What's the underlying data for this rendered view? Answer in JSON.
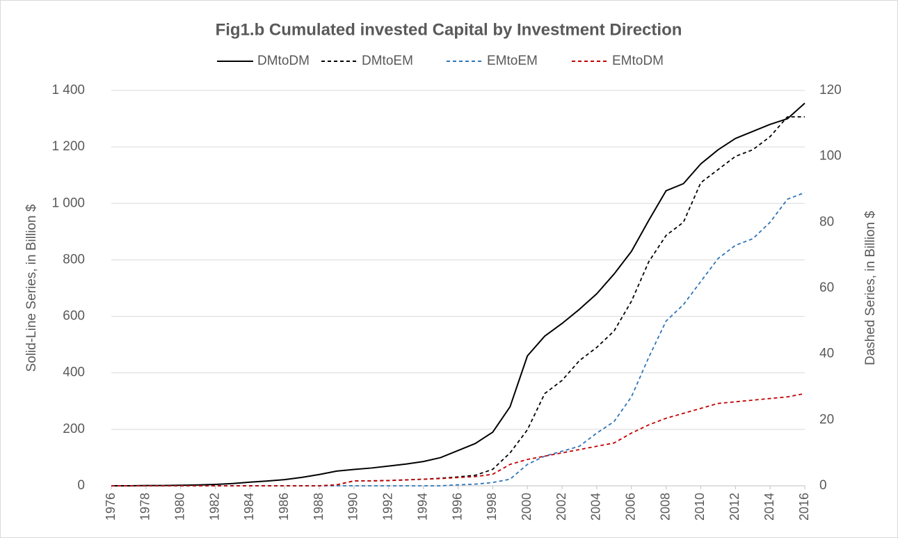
{
  "chart_data": {
    "type": "line",
    "title": "Fig1.b Cumulated invested Capital by Investment Direction",
    "y_label": "Solid-Line Series, in Billion $",
    "y2_label": "Dashed Series, in Billion $",
    "x": [
      1976,
      1977,
      1978,
      1979,
      1980,
      1981,
      1982,
      1983,
      1984,
      1985,
      1986,
      1987,
      1988,
      1989,
      1990,
      1991,
      1992,
      1993,
      1994,
      1995,
      1996,
      1997,
      1998,
      1999,
      2000,
      2001,
      2002,
      2003,
      2004,
      2005,
      2006,
      2007,
      2008,
      2009,
      2010,
      2011,
      2012,
      2013,
      2014,
      2015,
      2016
    ],
    "series": [
      {
        "name": "DMtoDM",
        "color": "#000000",
        "dashed": false,
        "values": [
          0,
          0,
          1,
          1,
          2,
          3,
          5,
          8,
          13,
          17,
          22,
          30,
          40,
          52,
          58,
          63,
          70,
          77,
          86,
          100,
          125,
          150,
          190,
          280,
          460,
          530,
          575,
          625,
          680,
          750,
          830,
          940,
          1045,
          1070,
          1140,
          1190,
          1230,
          1255,
          1280,
          1300,
          1355
        ]
      },
      {
        "name": "DMtoEM",
        "color": "#000000",
        "dashed": true,
        "axis": "y2",
        "values": [
          0,
          0,
          0,
          0,
          0,
          0,
          0,
          0,
          0,
          0,
          0,
          0,
          0,
          0.3,
          1.5,
          1.5,
          1.6,
          1.8,
          2,
          2.3,
          2.7,
          3.2,
          5,
          10,
          17,
          28,
          32,
          38,
          42,
          47,
          56,
          68,
          76,
          80,
          92,
          96,
          100,
          102,
          106,
          112,
          112
        ]
      },
      {
        "name": "EMtoEM",
        "color": "#2e75b6",
        "dashed": true,
        "axis": "y2",
        "values": [
          0,
          0,
          0,
          0,
          0,
          0,
          0,
          0,
          0,
          0,
          0,
          0,
          0,
          0,
          0,
          0,
          0,
          0,
          0,
          0,
          0.3,
          0.5,
          1,
          2,
          6.5,
          9,
          10.5,
          12,
          16,
          19.5,
          27,
          39,
          50,
          55,
          62,
          69,
          73,
          75,
          80,
          87,
          89
        ]
      },
      {
        "name": "EMtoDM",
        "color": "#c00000",
        "dashed": true,
        "axis": "y2",
        "values": [
          0,
          0,
          0,
          0,
          0,
          0,
          0,
          0,
          0,
          0,
          0,
          0,
          0,
          0.3,
          1.5,
          1.5,
          1.6,
          1.8,
          2,
          2.2,
          2.5,
          2.8,
          3.5,
          6.5,
          8,
          9,
          10,
          11,
          12,
          13,
          16,
          18.5,
          20.5,
          22,
          23.5,
          25,
          25.5,
          26,
          26.5,
          27,
          28
        ]
      }
    ],
    "xlim": [
      1976,
      2016
    ],
    "xticks": [
      1976,
      1978,
      1980,
      1982,
      1984,
      1986,
      1988,
      1990,
      1992,
      1994,
      1996,
      1998,
      2000,
      2002,
      2004,
      2006,
      2008,
      2010,
      2012,
      2014,
      2016
    ],
    "ylim": [
      0,
      1400
    ],
    "yticks": [
      0,
      200,
      400,
      600,
      800,
      {
        "value": 1000,
        "label": "1 000"
      },
      {
        "value": 1200,
        "label": "1 200"
      },
      {
        "value": 1400,
        "label": "1 400"
      }
    ],
    "y2lim": [
      0,
      120
    ],
    "y2ticks": [
      0,
      20,
      40,
      60,
      80,
      100,
      120
    ],
    "grid": true,
    "legend": "top"
  }
}
